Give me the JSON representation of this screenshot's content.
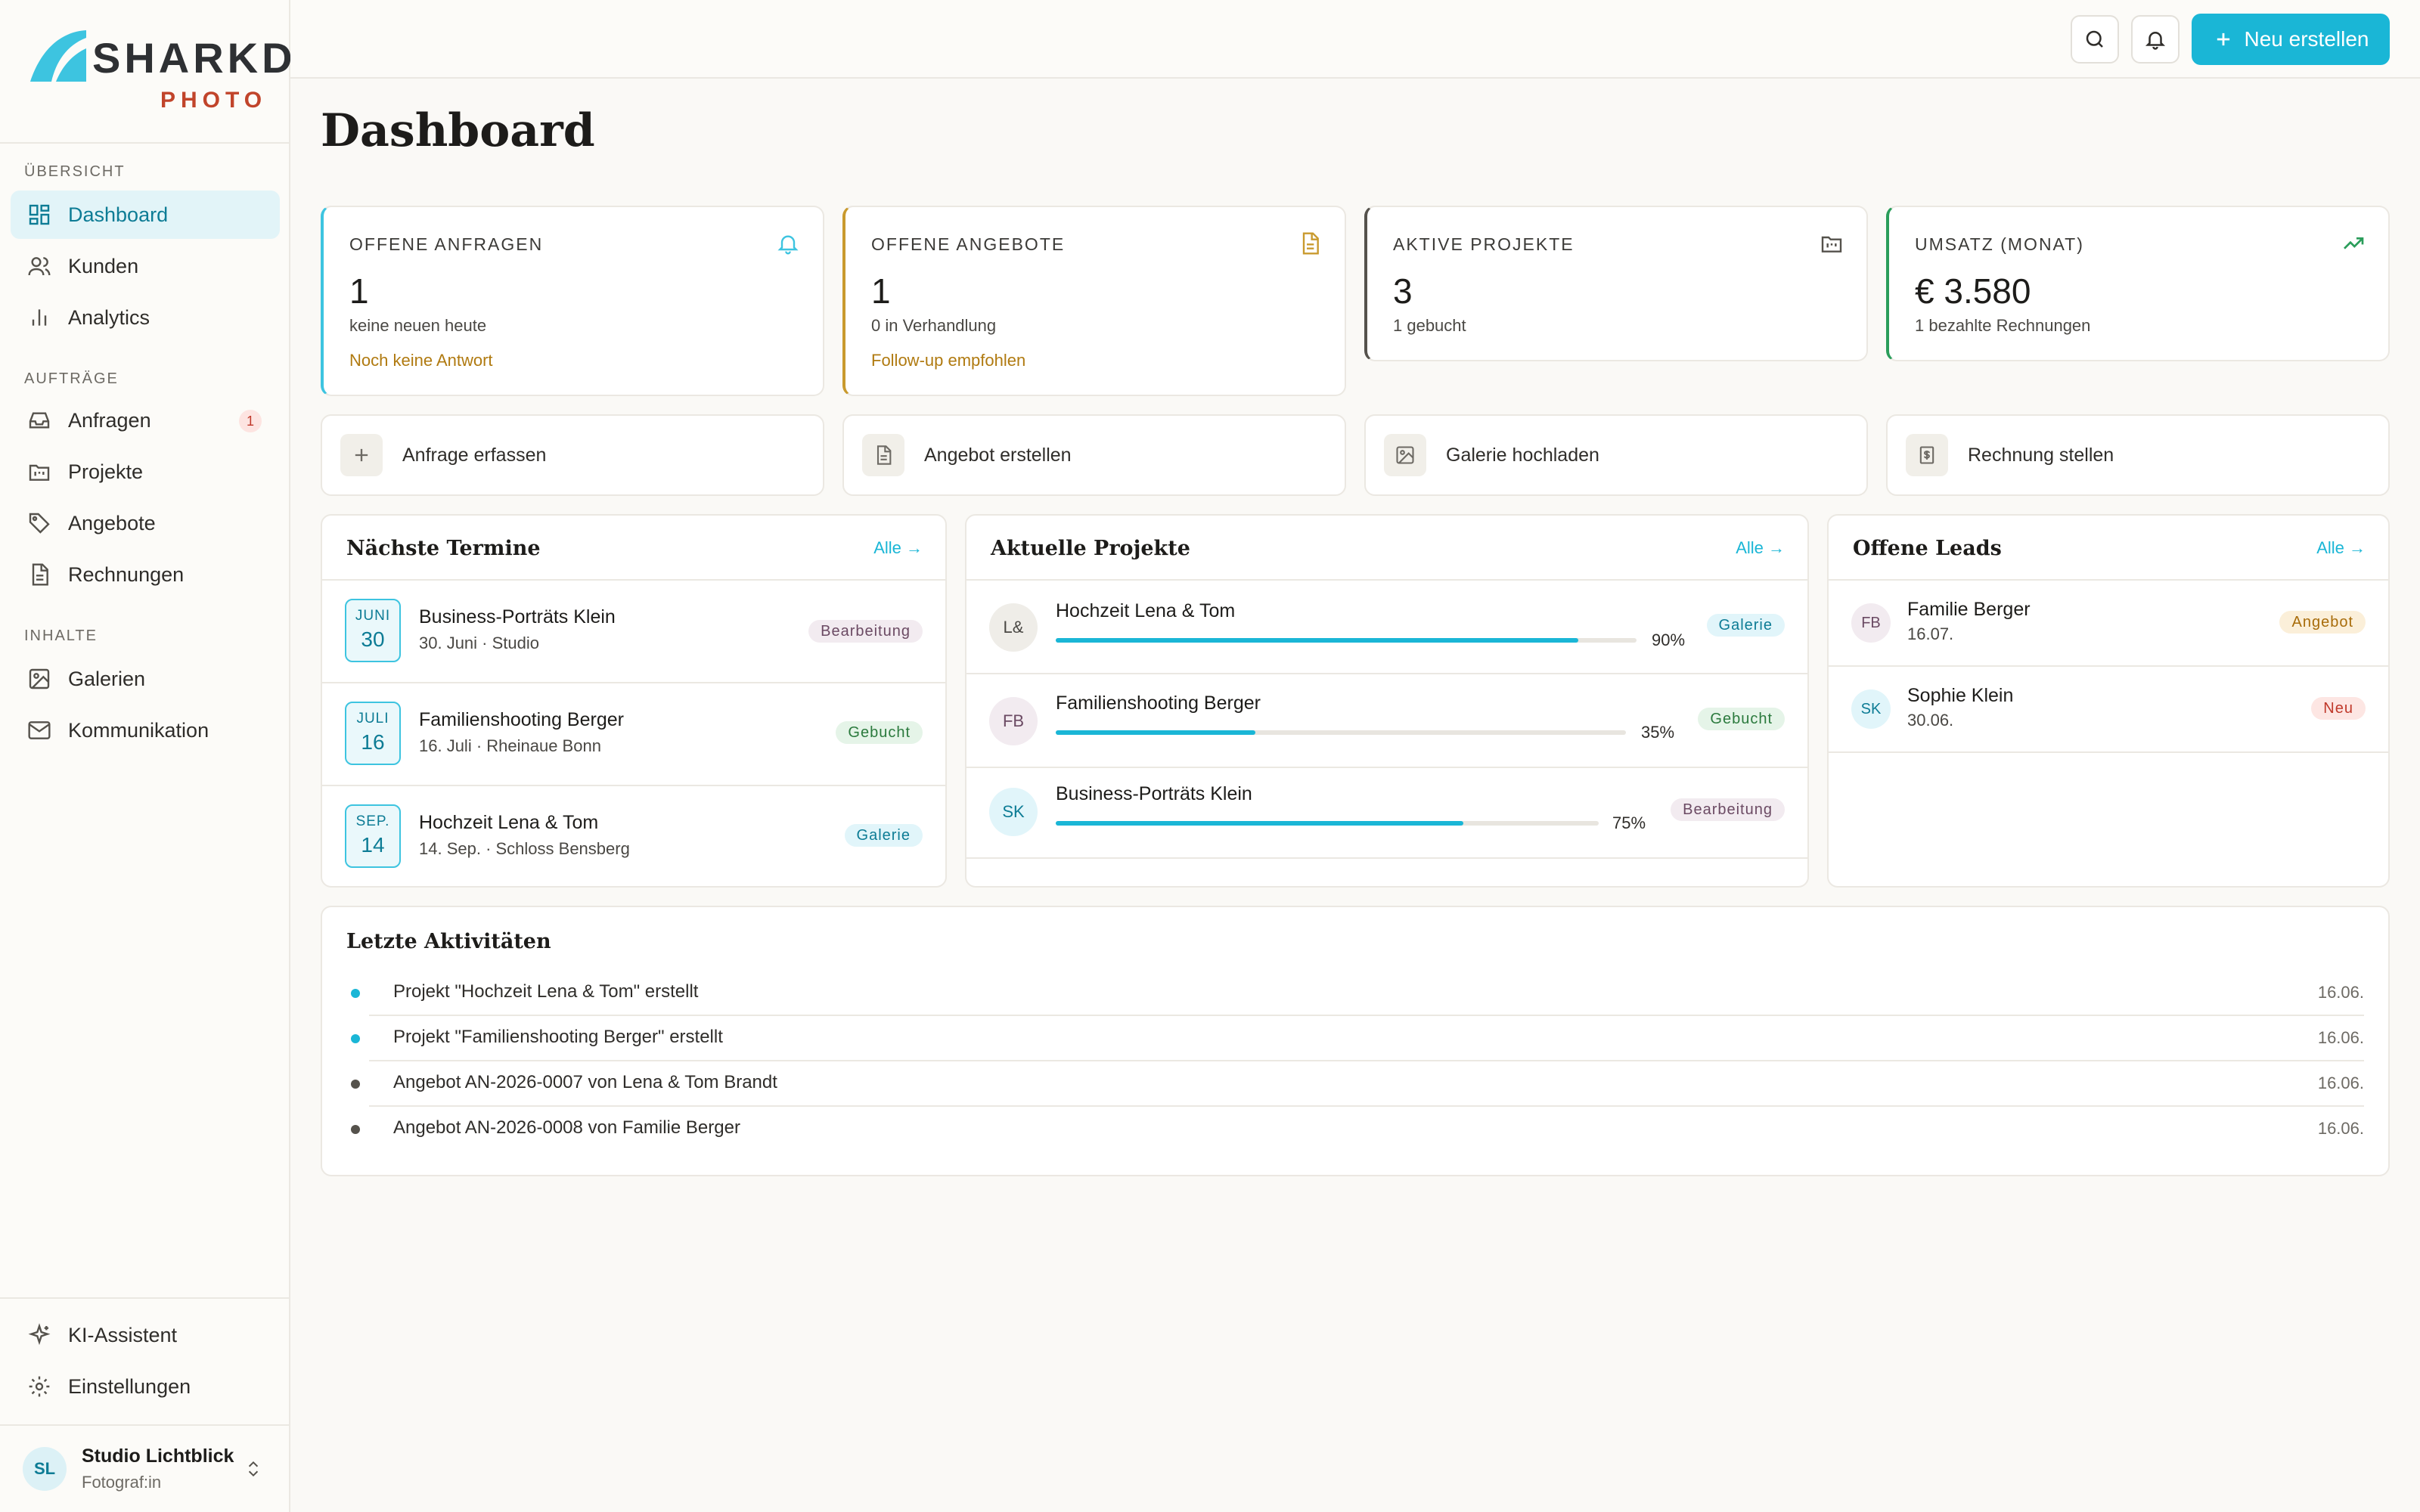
{
  "brand": {
    "name": "SHARKD",
    "sub": "PHOTO",
    "accent": "#1ab6d6",
    "sub_color": "#c1442b"
  },
  "sidebar": {
    "sections": [
      {
        "title": "ÜBERSICHT"
      },
      {
        "title": "AUFTRÄGE"
      },
      {
        "title": "INHALTE"
      }
    ],
    "items": [
      {
        "label": "Dashboard",
        "icon": "grid-icon",
        "active": true
      },
      {
        "label": "Kunden",
        "icon": "users-icon"
      },
      {
        "label": "Analytics",
        "icon": "bar-chart-icon"
      },
      {
        "label": "Anfragen",
        "icon": "inbox-icon",
        "badge": "1"
      },
      {
        "label": "Projekte",
        "icon": "folder-kanban-icon"
      },
      {
        "label": "Angebote",
        "icon": "tag-icon"
      },
      {
        "label": "Rechnungen",
        "icon": "file-text-icon"
      },
      {
        "label": "Galerien",
        "icon": "image-icon"
      },
      {
        "label": "Kommunikation",
        "icon": "mail-icon"
      }
    ],
    "bottom": [
      {
        "label": "KI-Assistent",
        "icon": "sparkles-icon"
      },
      {
        "label": "Einstellungen",
        "icon": "gear-icon"
      }
    ],
    "user": {
      "initials": "SL",
      "name": "Studio Lichtblick",
      "role": "Fotograf:in"
    }
  },
  "topbar": {
    "new_label": "Neu erstellen"
  },
  "page": {
    "title": "Dashboard"
  },
  "stats": [
    {
      "label": "OFFENE ANFRAGEN",
      "value": "1",
      "sub": "keine neuen heute",
      "hint": "Noch keine Antwort",
      "accent": "#3dc4e0",
      "icon": "bell-icon"
    },
    {
      "label": "OFFENE ANGEBOTE",
      "value": "1",
      "sub": "0 in Verhandlung",
      "hint": "Follow-up empfohlen",
      "accent": "#c99a2e",
      "icon": "document-icon"
    },
    {
      "label": "AKTIVE PROJEKTE",
      "value": "3",
      "sub": "1 gebucht",
      "accent": "#55524c",
      "icon": "folder-kanban-icon"
    },
    {
      "label": "UMSATZ (MONAT)",
      "value": "€ 3.580",
      "sub": "1 bezahlte Rechnungen",
      "accent": "#2a9d5a",
      "icon": "trending-up-icon"
    }
  ],
  "quick_actions": [
    {
      "label": "Anfrage erfassen",
      "icon": "plus-icon"
    },
    {
      "label": "Angebot erstellen",
      "icon": "document-icon"
    },
    {
      "label": "Galerie hochladen",
      "icon": "image-icon"
    },
    {
      "label": "Rechnung stellen",
      "icon": "receipt-icon"
    }
  ],
  "termine": {
    "title": "Nächste Termine",
    "link": "Alle →",
    "items": [
      {
        "month": "JUNI",
        "day": "30",
        "title": "Business-Porträts Klein",
        "sub": "30. Juni · Studio",
        "status": "Bearbeitung"
      },
      {
        "month": "JULI",
        "day": "16",
        "title": "Familienshooting Berger",
        "sub": "16. Juli · Rheinaue Bonn",
        "status": "Gebucht"
      },
      {
        "month": "SEP.",
        "day": "14",
        "title": "Hochzeit Lena & Tom",
        "sub": "14. Sep. · Schloss Bensberg",
        "status": "Galerie"
      }
    ]
  },
  "projekte": {
    "title": "Aktuelle Projekte",
    "link": "Alle →",
    "items": [
      {
        "initials": "L&",
        "title": "Hochzeit Lena & Tom",
        "progress": 0.9,
        "pct": "90%",
        "status": "Galerie"
      },
      {
        "initials": "FB",
        "title": "Familienshooting Berger",
        "progress": 0.35,
        "pct": "35%",
        "status": "Gebucht"
      },
      {
        "initials": "SK",
        "title": "Business-Porträts Klein",
        "progress": 0.75,
        "pct": "75%",
        "status": "Bearbeitung"
      }
    ]
  },
  "leads": {
    "title": "Offene Leads",
    "link": "Alle →",
    "items": [
      {
        "initials": "FB",
        "name": "Familie Berger",
        "date": "16.07.",
        "status": "Angebot"
      },
      {
        "initials": "SK",
        "name": "Sophie Klein",
        "date": "30.06.",
        "status": "Neu"
      }
    ]
  },
  "activities": {
    "title": "Letzte Aktivitäten",
    "items": [
      {
        "text": "Projekt \"Hochzeit Lena & Tom\" erstellt",
        "date": "16.06.",
        "dot": "#1ab6d6"
      },
      {
        "text": "Projekt \"Familienshooting Berger\" erstellt",
        "date": "16.06.",
        "dot": "#1ab6d6"
      },
      {
        "text": "Angebot AN-2026-0007 von Lena & Tom Brandt",
        "date": "16.06.",
        "dot": "#55524c"
      },
      {
        "text": "Angebot AN-2026-0008 von Familie Berger",
        "date": "16.06.",
        "dot": "#55524c"
      }
    ]
  }
}
